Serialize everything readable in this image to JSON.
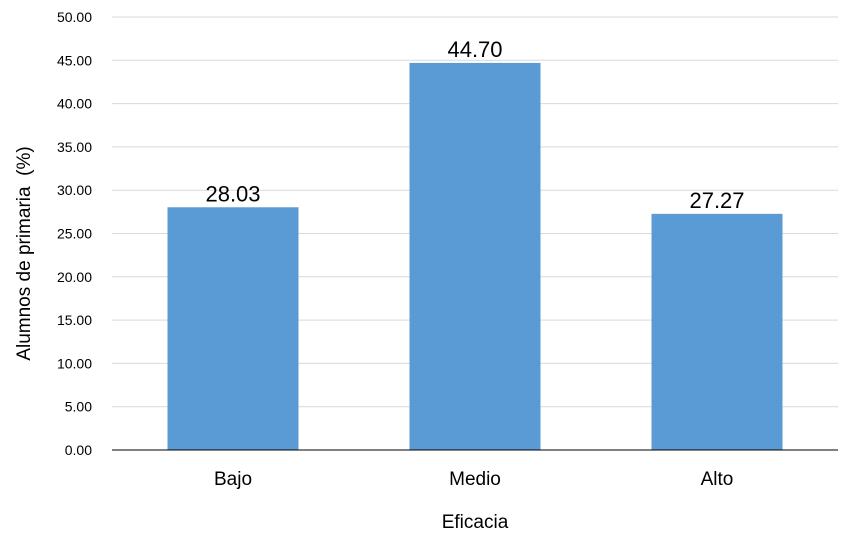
{
  "chart_data": {
    "type": "bar",
    "categories": [
      "Bajo",
      "Medio",
      "Alto"
    ],
    "values": [
      28.03,
      44.7,
      27.27
    ],
    "data_labels": [
      "28.03",
      "44.70",
      "27.27"
    ],
    "title": "",
    "xlabel": "Eficacia",
    "ylabel": "Alumnos de primaria  (%)",
    "ylim": [
      0,
      50
    ],
    "y_ticks": [
      "0.00",
      "5.00",
      "10.00",
      "15.00",
      "20.00",
      "25.00",
      "30.00",
      "35.00",
      "40.00",
      "45.00",
      "50.00"
    ],
    "grid": true,
    "legend": "none",
    "bar_color": "#5b9bd5"
  }
}
